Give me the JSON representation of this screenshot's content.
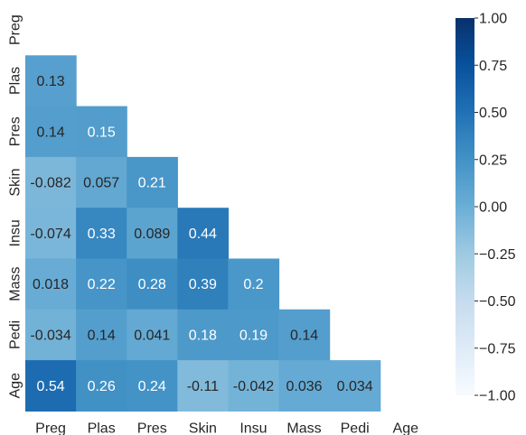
{
  "chart_data": {
    "type": "heatmap",
    "title": "",
    "xlabel": "",
    "ylabel": "",
    "labels": [
      "Preg",
      "Plas",
      "Pres",
      "Skin",
      "Insu",
      "Mass",
      "Pedi",
      "Age"
    ],
    "mask": "upper-triangle-including-diagonal",
    "cells": [
      {
        "row": "Plas",
        "col": "Preg",
        "value": 0.13,
        "label": "0.13"
      },
      {
        "row": "Pres",
        "col": "Preg",
        "value": 0.14,
        "label": "0.14"
      },
      {
        "row": "Pres",
        "col": "Plas",
        "value": 0.15,
        "label": "0.15"
      },
      {
        "row": "Skin",
        "col": "Preg",
        "value": -0.082,
        "label": "-0.082"
      },
      {
        "row": "Skin",
        "col": "Plas",
        "value": 0.057,
        "label": "0.057"
      },
      {
        "row": "Skin",
        "col": "Pres",
        "value": 0.21,
        "label": "0.21"
      },
      {
        "row": "Insu",
        "col": "Preg",
        "value": -0.074,
        "label": "-0.074"
      },
      {
        "row": "Insu",
        "col": "Plas",
        "value": 0.33,
        "label": "0.33"
      },
      {
        "row": "Insu",
        "col": "Pres",
        "value": 0.089,
        "label": "0.089"
      },
      {
        "row": "Insu",
        "col": "Skin",
        "value": 0.44,
        "label": "0.44"
      },
      {
        "row": "Mass",
        "col": "Preg",
        "value": 0.018,
        "label": "0.018"
      },
      {
        "row": "Mass",
        "col": "Plas",
        "value": 0.22,
        "label": "0.22"
      },
      {
        "row": "Mass",
        "col": "Pres",
        "value": 0.28,
        "label": "0.28"
      },
      {
        "row": "Mass",
        "col": "Skin",
        "value": 0.39,
        "label": "0.39"
      },
      {
        "row": "Mass",
        "col": "Insu",
        "value": 0.2,
        "label": "0.2"
      },
      {
        "row": "Pedi",
        "col": "Preg",
        "value": -0.034,
        "label": "-0.034"
      },
      {
        "row": "Pedi",
        "col": "Plas",
        "value": 0.14,
        "label": "0.14"
      },
      {
        "row": "Pedi",
        "col": "Pres",
        "value": 0.041,
        "label": "0.041"
      },
      {
        "row": "Pedi",
        "col": "Skin",
        "value": 0.18,
        "label": "0.18"
      },
      {
        "row": "Pedi",
        "col": "Insu",
        "value": 0.19,
        "label": "0.19"
      },
      {
        "row": "Pedi",
        "col": "Mass",
        "value": 0.14,
        "label": "0.14"
      },
      {
        "row": "Age",
        "col": "Preg",
        "value": 0.54,
        "label": "0.54"
      },
      {
        "row": "Age",
        "col": "Plas",
        "value": 0.26,
        "label": "0.26"
      },
      {
        "row": "Age",
        "col": "Pres",
        "value": 0.24,
        "label": "0.24"
      },
      {
        "row": "Age",
        "col": "Skin",
        "value": -0.11,
        "label": "-0.11"
      },
      {
        "row": "Age",
        "col": "Insu",
        "value": -0.042,
        "label": "-0.042"
      },
      {
        "row": "Age",
        "col": "Mass",
        "value": 0.036,
        "label": "0.036"
      },
      {
        "row": "Age",
        "col": "Pedi",
        "value": 0.034,
        "label": "0.034"
      }
    ],
    "colorbar": {
      "vmin": -1.0,
      "vmax": 1.0,
      "ticks": [
        1.0,
        0.75,
        0.5,
        0.25,
        0.0,
        -0.25,
        -0.5,
        -0.75,
        -1.0
      ],
      "tick_labels": [
        "1.00",
        "0.75",
        "0.50",
        "0.25",
        "0.00",
        "−0.25",
        "−0.50",
        "−0.75",
        "−1.00"
      ],
      "colormap": "Blues",
      "placement": "right"
    },
    "grid": false,
    "legend": "none"
  }
}
